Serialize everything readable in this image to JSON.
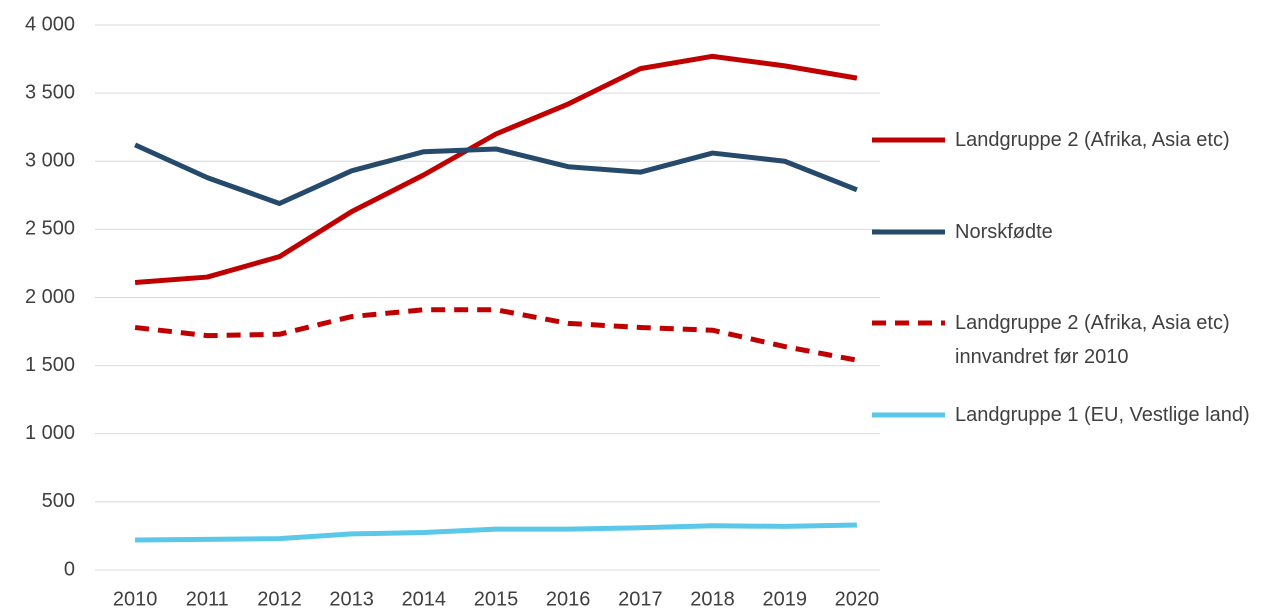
{
  "chart_data": {
    "type": "line",
    "categories": [
      "2010",
      "2011",
      "2012",
      "2013",
      "2014",
      "2015",
      "2016",
      "2017",
      "2018",
      "2019",
      "2020"
    ],
    "series": [
      {
        "name": "Landgruppe 2 (Afrika, Asia etc)",
        "color": "#c00000",
        "line_style": "solid",
        "values": [
          2110,
          2150,
          2300,
          2630,
          2900,
          3200,
          3420,
          3680,
          3770,
          3700,
          3610
        ]
      },
      {
        "name": "Norskfødte",
        "color": "#264a6b",
        "line_style": "solid",
        "values": [
          3120,
          2880,
          2690,
          2930,
          3070,
          3090,
          2960,
          2920,
          3060,
          3000,
          2790
        ]
      },
      {
        "name": "Landgruppe 2 (Afrika, Asia etc) innvandret før 2010",
        "color": "#c00000",
        "line_style": "dashed",
        "values": [
          1780,
          1720,
          1730,
          1860,
          1910,
          1910,
          1810,
          1780,
          1760,
          1640,
          1540
        ]
      },
      {
        "name": "Landgruppe 1 (EU, Vestlige land)",
        "color": "#5bc8ea",
        "line_style": "solid",
        "values": [
          220,
          225,
          230,
          265,
          275,
          300,
          300,
          310,
          325,
          320,
          330
        ]
      }
    ],
    "ylim": [
      0,
      4000
    ],
    "yticks": [
      0,
      500,
      {
        "value": 1000,
        "label": "1 000"
      },
      {
        "value": 1500,
        "label": "1 500"
      },
      {
        "value": 2000,
        "label": "2 000"
      },
      {
        "value": 2500,
        "label": "2 500"
      },
      {
        "value": 3000,
        "label": "3 000"
      },
      {
        "value": 3500,
        "label": "3 500"
      },
      {
        "value": 4000,
        "label": "4 000"
      }
    ],
    "grid": true,
    "legend": "right"
  }
}
